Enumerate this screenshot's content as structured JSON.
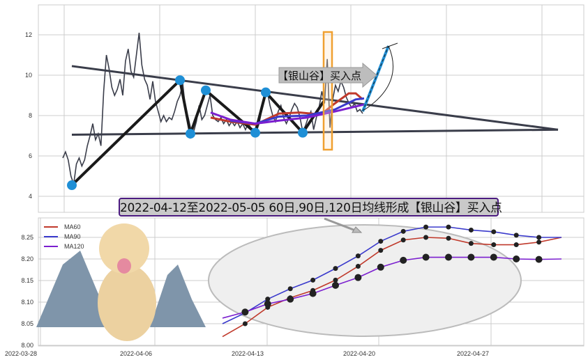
{
  "chart_data": [
    {
      "type": "line",
      "ylim": [
        3.5,
        13.5
      ],
      "yticks": [
        "4",
        "6",
        "8",
        "10",
        "12"
      ],
      "grid": true,
      "price": [
        5.9,
        6.2,
        5.8,
        5.0,
        4.6,
        5.6,
        5.9,
        5.5,
        5.8,
        6.5,
        7.0,
        7.6,
        6.8,
        7.1,
        6.5,
        9.2,
        11.0,
        10.3,
        9.4,
        9.0,
        9.3,
        9.8,
        9.0,
        10.7,
        11.3,
        10.2,
        9.9,
        11.0,
        12.1,
        10.5,
        9.8,
        9.5,
        8.8,
        9.7,
        8.7,
        8.2,
        7.7,
        8.0,
        7.7,
        7.9,
        7.8,
        8.2,
        8.7,
        9.0,
        9.6,
        8.3,
        7.9,
        7.3,
        7.2,
        7.7,
        8.5,
        7.8,
        8.0,
        8.5,
        9.0,
        8.0,
        7.8,
        7.7,
        7.9,
        7.6,
        7.8,
        7.5,
        7.7,
        7.5,
        7.7,
        7.4,
        7.6,
        7.3,
        7.6,
        7.4,
        7.3,
        7.2,
        7.6,
        8.3,
        8.8,
        9.2,
        8.5,
        8.0,
        7.7,
        8.2,
        8.5,
        7.9,
        7.6,
        7.9,
        8.3,
        8.6,
        8.4,
        7.9,
        7.2,
        7.5,
        7.9,
        8.2,
        7.3,
        7.9,
        8.4,
        9.2,
        8.6,
        10.8,
        7.4,
        8.8,
        9.5,
        9.2,
        9.7,
        9.4,
        8.9,
        8.6,
        8.4,
        8.6,
        8.2,
        8.3,
        8.1
      ],
      "pivots": [
        4.55,
        9.75,
        7.1,
        9.25,
        7.15,
        9.15,
        7.15
      ],
      "annotation": "【银山谷】买入点",
      "colors": {
        "price": "#3a3d4a",
        "pivot": "#1e8fd6",
        "zigzag": "#1a1a1a",
        "ma60": "#c0392b",
        "ma90": "#3a3acc",
        "ma120": "#7b1fcf",
        "highlight": "#f0a030"
      }
    },
    {
      "type": "line",
      "title": "2022-04-12至2022-05-05 60日,90日,120日均线形成【银山谷】买入点",
      "ylim": [
        8.0,
        8.3
      ],
      "yticks": [
        "8.00",
        "8.05",
        "8.10",
        "8.15",
        "8.20",
        "8.25"
      ],
      "xticks": [
        "2022-03-28",
        "2022-04-06",
        "2022-04-13",
        "2022-04-20",
        "2022-04-27"
      ],
      "legend": "top-left",
      "grid": true,
      "series": [
        {
          "name": "MA60",
          "color": "#c0392b",
          "values": [
            8.02,
            8.05,
            8.088,
            8.11,
            8.127,
            8.151,
            8.183,
            8.22,
            8.244,
            8.25,
            8.248,
            8.236,
            8.233,
            8.233,
            8.239,
            8.25
          ]
        },
        {
          "name": "MA90",
          "color": "#3a3acc",
          "values": [
            8.05,
            8.075,
            8.107,
            8.131,
            8.151,
            8.178,
            8.207,
            8.241,
            8.264,
            8.274,
            8.274,
            8.267,
            8.263,
            8.255,
            8.25,
            8.25
          ]
        },
        {
          "name": "MA120",
          "color": "#7b1fcf",
          "values": [
            8.063,
            8.077,
            8.096,
            8.107,
            8.12,
            8.139,
            8.157,
            8.181,
            8.197,
            8.204,
            8.204,
            8.204,
            8.204,
            8.2,
            8.199,
            8.2
          ]
        }
      ]
    }
  ]
}
